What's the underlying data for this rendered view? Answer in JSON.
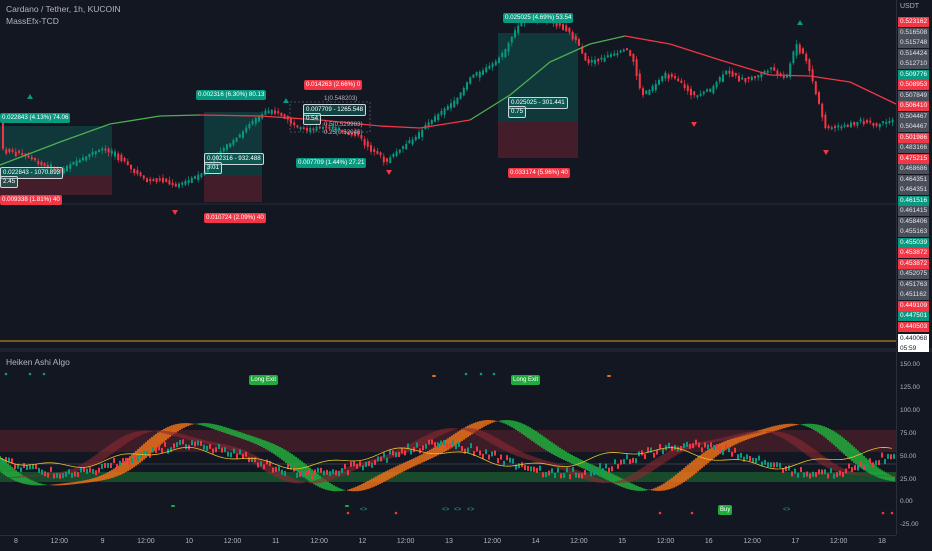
{
  "legend": {
    "title": "Cardano / Tether, 1h, KUCOIN",
    "indicator": "MassEfx-TCD",
    "lower_indicator": "Heiken Ashi Algo"
  },
  "currency": "USDT",
  "colors": {
    "bg": "#131722",
    "up": "#089981",
    "down": "#f23645",
    "ma_up": "#4caf50",
    "ma_down": "#f23645",
    "bright_green": "#22ab3d",
    "orange": "#e8701a"
  },
  "price_scale": [
    {
      "v": "0.523162",
      "c": "red"
    },
    {
      "v": "0.516508",
      "c": "gray"
    },
    {
      "v": "0.515748",
      "c": "gray"
    },
    {
      "v": "0.514424",
      "c": "gray"
    },
    {
      "v": "0.512710",
      "c": "gray"
    },
    {
      "v": "0.509776",
      "c": "green"
    },
    {
      "v": "0.508953",
      "c": "red"
    },
    {
      "v": "0.507849",
      "c": "gray"
    },
    {
      "v": "0.506410",
      "c": "red"
    },
    {
      "v": "0.504467",
      "c": "gray"
    },
    {
      "v": "0.504467",
      "c": "gray"
    },
    {
      "v": "0.501986",
      "c": "red"
    },
    {
      "v": "0.483166",
      "c": "gray"
    },
    {
      "v": "0.475215",
      "c": "red"
    },
    {
      "v": "0.468686",
      "c": "gray"
    },
    {
      "v": "0.464351",
      "c": "gray"
    },
    {
      "v": "0.464351",
      "c": "gray"
    },
    {
      "v": "0.461516",
      "c": "green"
    },
    {
      "v": "0.461415",
      "c": "gray"
    },
    {
      "v": "0.458406",
      "c": "gray"
    },
    {
      "v": "0.455163",
      "c": "gray"
    },
    {
      "v": "0.455039",
      "c": "green"
    },
    {
      "v": "0.453872",
      "c": "red"
    },
    {
      "v": "0.453872",
      "c": "red"
    },
    {
      "v": "0.452075",
      "c": "gray"
    },
    {
      "v": "0.451763",
      "c": "gray"
    },
    {
      "v": "0.451162",
      "c": "gray"
    },
    {
      "v": "0.449109",
      "c": "red"
    },
    {
      "v": "0.447501",
      "c": "green"
    },
    {
      "v": "0.440503",
      "c": "red"
    }
  ],
  "last_price": {
    "value": "0.440068",
    "countdown": "05:59"
  },
  "indicator_scale": [
    "150.00",
    "125.00",
    "100.00",
    "75.00",
    "50.00",
    "25.00",
    "0.00",
    "-25.00"
  ],
  "time_axis": [
    "8",
    "12:00",
    "9",
    "12:00",
    "10",
    "12:00",
    "11",
    "12:00",
    "12",
    "12:00",
    "13",
    "12:00",
    "14",
    "12:00",
    "15",
    "12:00",
    "16",
    "12:00",
    "17",
    "12:00",
    "18"
  ],
  "trade_labels": [
    {
      "text": "0.022843 (4.13%) 74.06",
      "style": "g"
    },
    {
      "text": "0.022843 - 1070.893",
      "style": "box"
    },
    {
      "text": "2.45",
      "style": "box"
    },
    {
      "text": "0.009338 (1.81%) 40",
      "style": "r"
    },
    {
      "text": "0.002316 (6.30%) 80.13",
      "style": "g"
    },
    {
      "text": "0.002316 - 932.488",
      "style": "box"
    },
    {
      "text": "3.01",
      "style": "box"
    },
    {
      "text": "0.010724 (2.09%) 40",
      "style": "r"
    },
    {
      "text": "0.014263 (2.66%) 0",
      "style": "r"
    },
    {
      "text": "0.007709 - 1265.548",
      "style": "box"
    },
    {
      "text": "0.54",
      "style": "box"
    },
    {
      "text": "0.007709 (1.44%) 27.21",
      "style": "g"
    },
    {
      "text": "0.025025 (4.69%) 53.54",
      "style": "g"
    },
    {
      "text": "0.025025 - 301.441",
      "style": "box"
    },
    {
      "text": "0.75",
      "style": "box"
    },
    {
      "text": "0.033174 (5.96%) 40",
      "style": "r"
    }
  ],
  "fib_labels": [
    "1(0.548203)",
    "0.5(0.529983)",
    "0.25(0.52046)"
  ],
  "signals": {
    "long_exit": "Long Exit",
    "buy": "Buy",
    "arrow": "<>"
  }
}
